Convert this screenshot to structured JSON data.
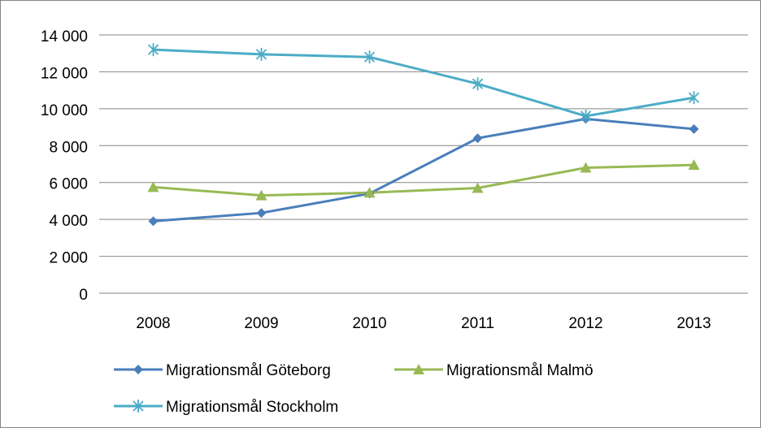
{
  "chart_data": {
    "type": "line",
    "categories": [
      "2008",
      "2009",
      "2010",
      "2011",
      "2012",
      "2013"
    ],
    "series": [
      {
        "name": "Migrationsmål Göteborg",
        "color": "#4a7ebb",
        "marker": "diamond",
        "values": [
          3900,
          4350,
          5400,
          8400,
          9450,
          8900
        ]
      },
      {
        "name": "Migrationsmål Malmö",
        "color": "#98b954",
        "marker": "triangle",
        "values": [
          5750,
          5300,
          5450,
          5700,
          6800,
          6950
        ]
      },
      {
        "name": "Migrationsmål Stockholm",
        "color": "#4bacc6",
        "marker": "star",
        "values": [
          13200,
          12950,
          12800,
          11350,
          9600,
          10600
        ]
      }
    ],
    "ylim": [
      0,
      14000
    ],
    "yticks": [
      {
        "value": 0,
        "label": "0"
      },
      {
        "value": 2000,
        "label": "2 000"
      },
      {
        "value": 4000,
        "label": "4 000"
      },
      {
        "value": 6000,
        "label": "6 000"
      },
      {
        "value": 8000,
        "label": "8 000"
      },
      {
        "value": 10000,
        "label": "10 000"
      },
      {
        "value": 12000,
        "label": "12 000"
      },
      {
        "value": 14000,
        "label": "14 000"
      }
    ],
    "grid": true,
    "legend": "bottom"
  }
}
